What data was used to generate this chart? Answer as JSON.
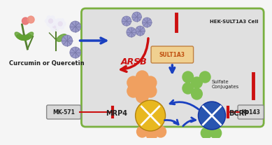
{
  "bg_color": "#f5f5f5",
  "cell_bg": "#e0e0e0",
  "cell_border": "#7ab040",
  "title": "Curcumin or Quercetin",
  "cell_label": "HEK-SULT1A3 Cell",
  "arsb_label": "ARSB",
  "sult_label": "SULT1A3",
  "sulfate_label": "Sulfate\nConjugates",
  "mrp4_label": "MRP4",
  "bcrp_label": "BCRP",
  "mk571_label": "MK-571",
  "ko143_label": "Ko143",
  "drug_color": "#9898c8",
  "drug_edge": "#7878a8",
  "orange_color": "#f0a060",
  "green_color": "#80c050",
  "yellow_color": "#e8b820",
  "yellow_edge": "#b08010",
  "blue_color": "#2855b0",
  "blue_edge": "#1030a0",
  "arrow_blue": "#1a40c0",
  "arrow_red": "#cc1010",
  "text_dark": "#222222",
  "text_red": "#cc1010",
  "sult_text": "#c05010",
  "sult_box_bg": "#f0d090",
  "sult_box_edge": "#c08040",
  "inhibitor_box_bg": "#d8d8d8",
  "inhibitor_box_edge": "#888888"
}
